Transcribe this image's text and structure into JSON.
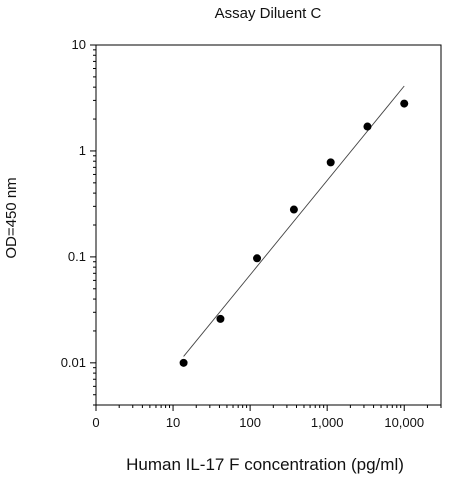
{
  "chart_data": {
    "type": "scatter",
    "title": "Assay Diluent C",
    "xlabel": "Human IL-17 F concentration (pg/ml)",
    "ylabel": "OD=450 nm",
    "x_scale": "log",
    "y_scale": "log",
    "xlim": [
      1,
      30000
    ],
    "ylim": [
      0.004,
      10
    ],
    "x_ticks": [
      {
        "value": 1,
        "label": "0"
      },
      {
        "value": 10,
        "label": "10"
      },
      {
        "value": 100,
        "label": "100"
      },
      {
        "value": 1000,
        "label": "1,000"
      },
      {
        "value": 10000,
        "label": "10,000"
      }
    ],
    "y_ticks": [
      {
        "value": 0.01,
        "label": "0.01"
      },
      {
        "value": 0.1,
        "label": "0.1"
      },
      {
        "value": 1,
        "label": "1"
      },
      {
        "value": 10,
        "label": "10"
      }
    ],
    "points": [
      {
        "x": 13.7,
        "y": 0.01
      },
      {
        "x": 41.2,
        "y": 0.026
      },
      {
        "x": 123,
        "y": 0.097
      },
      {
        "x": 370,
        "y": 0.28
      },
      {
        "x": 1111,
        "y": 0.78
      },
      {
        "x": 3333,
        "y": 1.7
      },
      {
        "x": 10000,
        "y": 2.8
      }
    ],
    "fit_line": {
      "x": [
        13.7,
        10000
      ],
      "y": [
        0.0115,
        4.1
      ]
    },
    "grid": false,
    "legend": "none",
    "colors": {
      "points": "#000000",
      "line": "#444444",
      "axes": "#000000"
    }
  }
}
